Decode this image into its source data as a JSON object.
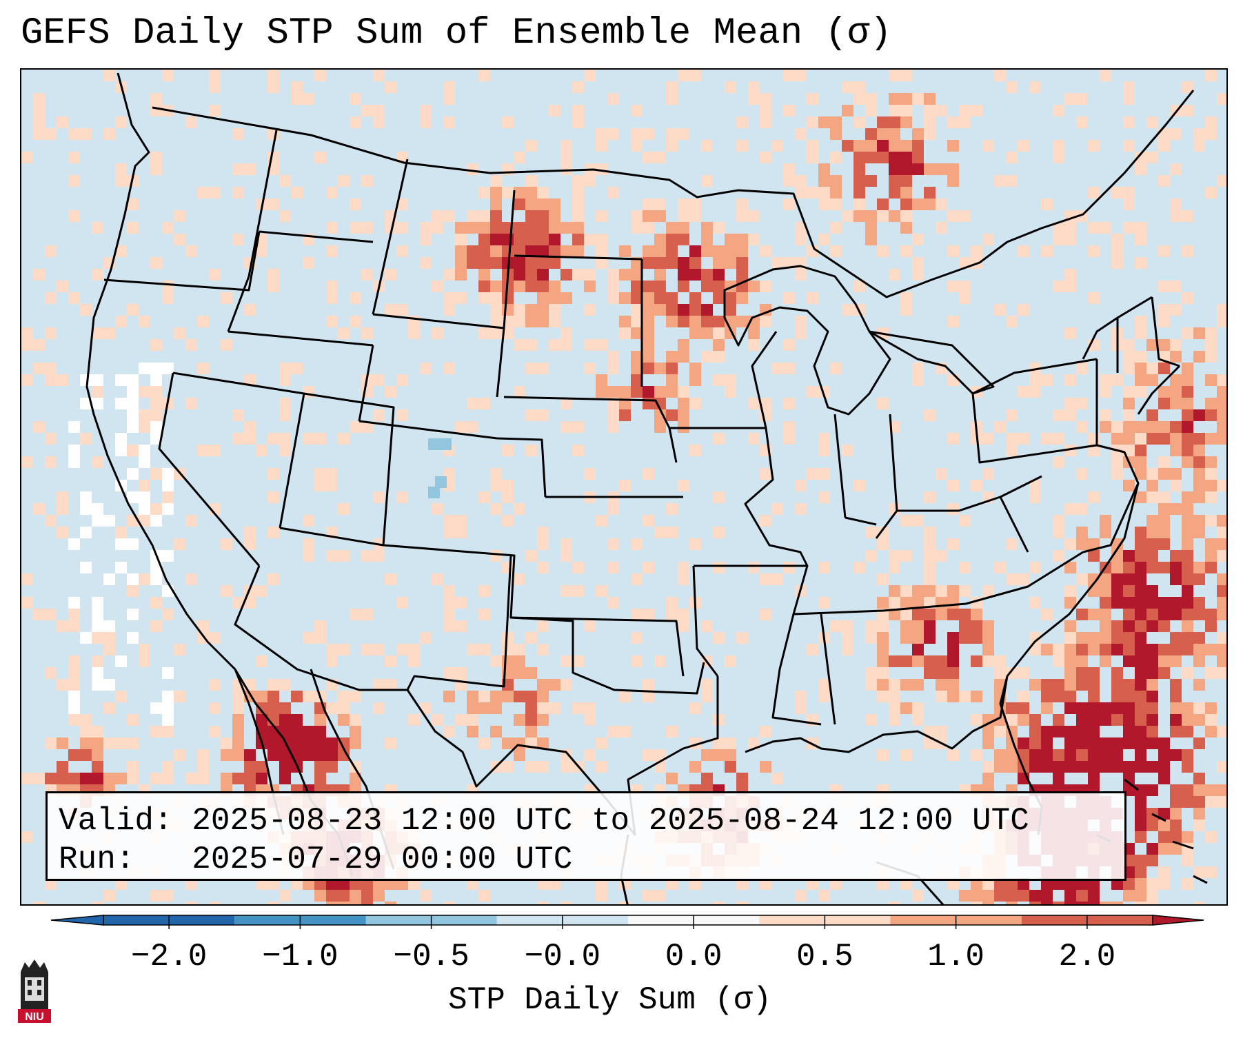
{
  "title": "GEFS Daily STP Sum of Ensemble Mean (σ)",
  "info": {
    "valid_label": "Valid:",
    "valid_value": "2025-08-23 12:00 UTC to 2025-08-24 12:00 UTC",
    "run_label": "Run:",
    "run_value": "2025-07-29 00:00 UTC"
  },
  "colorbar": {
    "label": "STP Daily Sum (σ)",
    "ticks": [
      "−2.0",
      "−1.0",
      "−0.5",
      "−0.0",
      "0.0",
      "0.5",
      "1.0",
      "2.0"
    ],
    "colors": [
      "#2166ac",
      "#4393c3",
      "#92c5de",
      "#d1e5f0",
      "#f7f7f7",
      "#fddbc7",
      "#f4a582",
      "#d6604d",
      "#b2182b"
    ]
  },
  "map": {
    "region": "Contiguous United States",
    "background_color": "#d1e5f0",
    "land_outline_color": "#000000",
    "hotspots": [
      "North Dakota / northern Minnesota",
      "Gulf Coast / Southeast",
      "Western Atlantic / Bahamas",
      "Sonora / Gulf of California",
      "Mexican Gulf coast"
    ]
  },
  "logo": {
    "text": "NIU",
    "color": "#c8102e"
  }
}
